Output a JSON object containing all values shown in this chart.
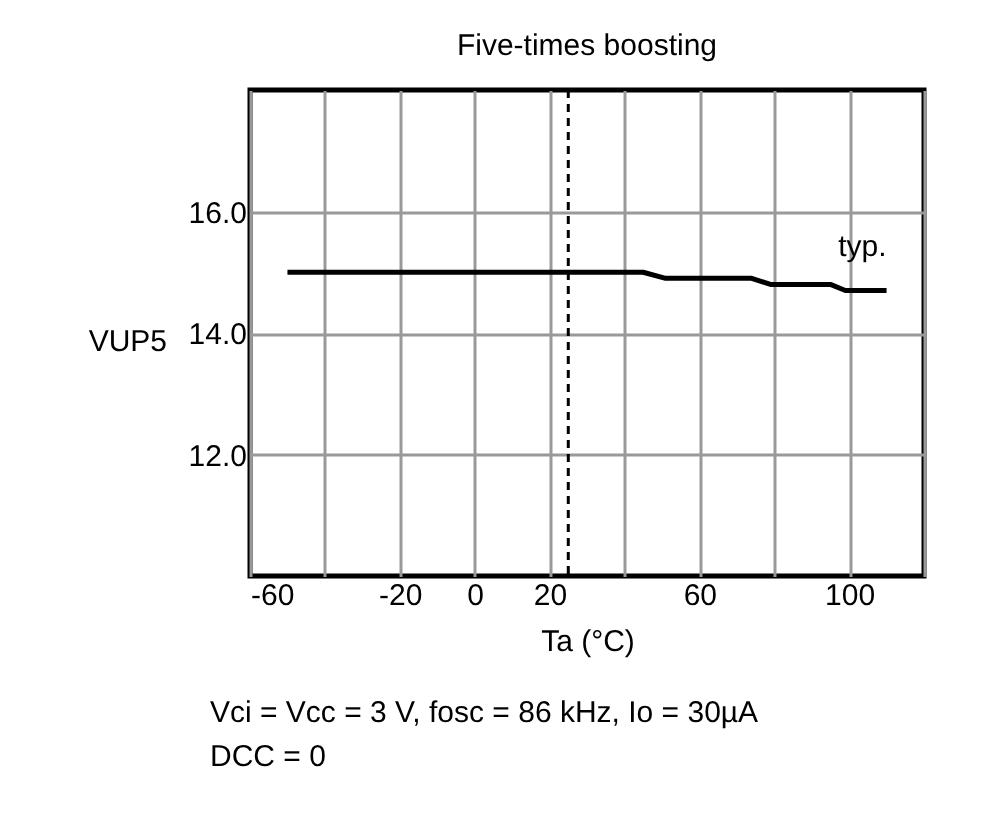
{
  "chart_data": {
    "type": "line",
    "title": "Five-times boosting",
    "xlabel": "Ta (°C)",
    "ylabel": "VUP5",
    "xlim": [
      -60,
      120
    ],
    "xticks": [
      -60,
      {
        "value": -40,
        "label": null
      },
      -20,
      0,
      20,
      {
        "value": 40,
        "label": null
      },
      60,
      {
        "value": 80,
        "label": null
      },
      100,
      {
        "value": 120,
        "label": null
      }
    ],
    "ylim": [
      10,
      18
    ],
    "yticks": [
      {
        "value": 12,
        "label": "12.0"
      },
      {
        "value": 14,
        "label": "14.0"
      },
      {
        "value": 16,
        "label": "16.0"
      }
    ],
    "grid": true,
    "legend": false,
    "marker": "none",
    "line_style": "solid",
    "series": [
      {
        "name": "typ.",
        "color": "#000000",
        "x": [
          -50,
          45,
          51,
          74,
          79,
          95,
          99,
          110
        ],
        "values": [
          15.0,
          15.0,
          14.9,
          14.9,
          14.8,
          14.8,
          14.7,
          14.7
        ]
      }
    ],
    "ref_lines": [
      {
        "axis": "x",
        "value": 25,
        "color": "#000000",
        "line_style": "dashed"
      }
    ],
    "annotations": [
      "Vci = Vcc = 3 V, fosc = 86 kHz, Io = 30µA",
      "DCC = 0"
    ]
  }
}
